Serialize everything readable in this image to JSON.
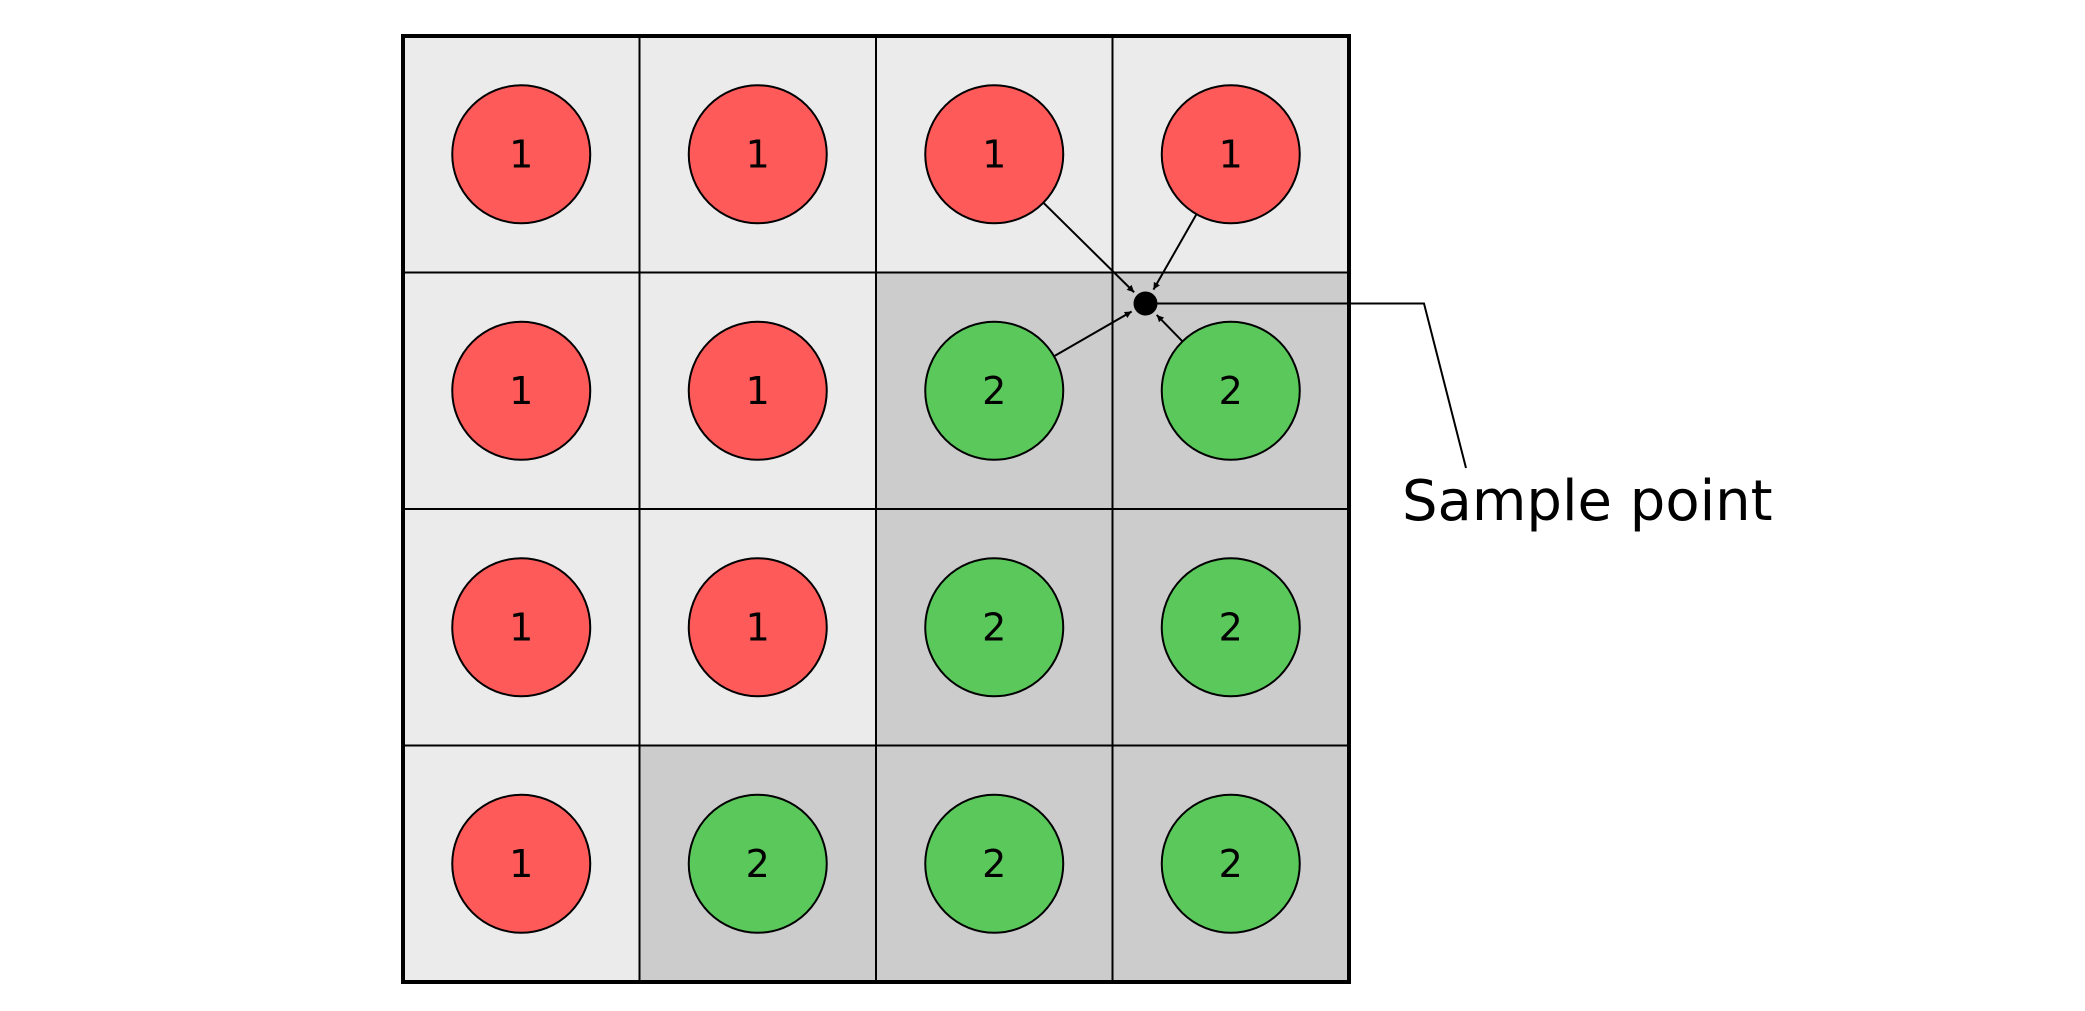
{
  "colors": {
    "class_1_circle": "#ff5a5a",
    "class_2_circle": "#5ac85a",
    "class_1_cell": "#ebebeb",
    "class_2_cell": "#cccccc",
    "stroke": "#000000",
    "background": "#ffffff"
  },
  "grid": {
    "rows": 4,
    "cols": 4,
    "classes": [
      [
        "1",
        "1",
        "1",
        "1"
      ],
      [
        "1",
        "1",
        "2",
        "2"
      ],
      [
        "1",
        "1",
        "2",
        "2"
      ],
      [
        "1",
        "2",
        "2",
        "2"
      ]
    ]
  },
  "sample_point": {
    "label": "Sample point",
    "neighbor_cells": [
      [
        0,
        2
      ],
      [
        0,
        3
      ],
      [
        1,
        2
      ],
      [
        1,
        3
      ]
    ]
  }
}
